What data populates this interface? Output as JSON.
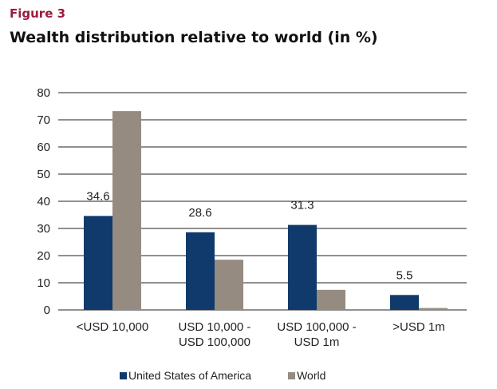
{
  "figure_label": "Figure 3",
  "title": "Wealth distribution relative to world (in %)",
  "colors": {
    "usa": "#0f3a6b",
    "world": "#958b80",
    "grid": "#222222",
    "accent": "#9a1b3d"
  },
  "chart_data": {
    "type": "bar",
    "title": "Wealth distribution relative to world (in %)",
    "categories": [
      [
        "<USD 10,000"
      ],
      [
        "USD 10,000 -",
        "USD 100,000"
      ],
      [
        "USD 100,000 -",
        "USD 1m"
      ],
      [
        ">USD 1m"
      ]
    ],
    "series": [
      {
        "name": "United States of America",
        "values": [
          34.6,
          28.6,
          31.3,
          5.5
        ],
        "data_labels": [
          "34.6",
          "28.6",
          "31.3",
          "5.5"
        ]
      },
      {
        "name": "World",
        "values": [
          73.2,
          18.5,
          7.4,
          0.7
        ]
      }
    ],
    "ylim": [
      0,
      80
    ],
    "yticks": [
      0,
      10,
      20,
      30,
      40,
      50,
      60,
      70,
      80
    ],
    "grid": true,
    "legend_position": "bottom"
  }
}
